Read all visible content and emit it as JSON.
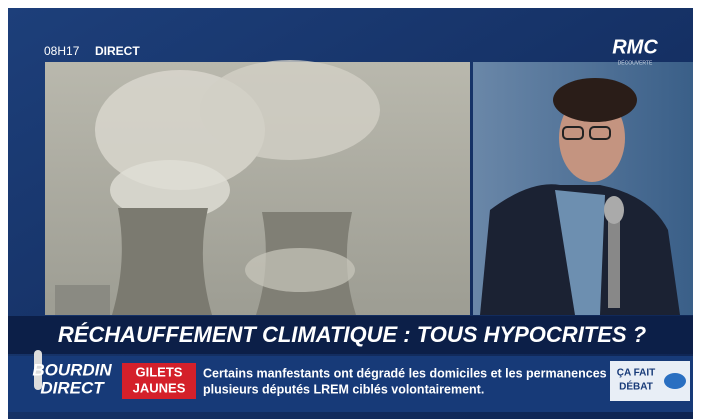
{
  "header": {
    "time": "08H17",
    "live": "DIRECT",
    "channel": "RMC",
    "channel_sub": "DÉCOUVERTE"
  },
  "headline": "RÉCHAUFFEMENT CLIMATIQUE : TOUS HYPOCRITES ?",
  "ticker": {
    "show_line1": "BOURDIN",
    "show_line2": "DIRECT",
    "topic_line1": "GILETS",
    "topic_line2": "JAUNES",
    "text_line1": "Certains manfestants ont dégradé les domiciles et les permanences de",
    "text_line2": "plusieurs députés LREM ciblés volontairement.",
    "badge_line1": "ÇA FAIT",
    "badge_line2": "DÉBAT"
  }
}
